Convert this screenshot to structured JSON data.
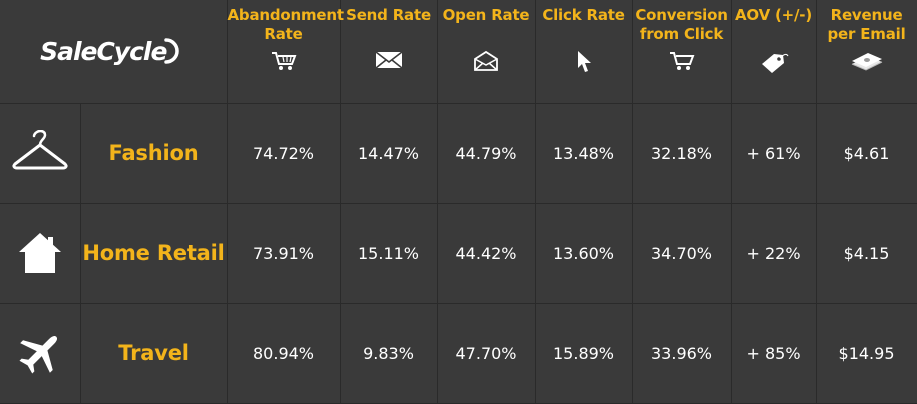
{
  "brand": {
    "name": "SaleCycle"
  },
  "chart_data": {
    "type": "table",
    "columns": [
      {
        "label": "Abandonment Rate",
        "icon": "shopping-cart-icon"
      },
      {
        "label": "Send Rate",
        "icon": "envelope-icon"
      },
      {
        "label": "Open Rate",
        "icon": "open-envelope-icon"
      },
      {
        "label": "Click Rate",
        "icon": "cursor-arrow-icon"
      },
      {
        "label": "Conversion from Click",
        "icon": "cart-icon"
      },
      {
        "label": "AOV (+/-)",
        "icon": "price-tag-icon"
      },
      {
        "label": "Revenue per Email",
        "icon": "money-stack-icon"
      }
    ],
    "rows": [
      {
        "category": "Fashion",
        "icon": "hanger-icon",
        "values": [
          "74.72%",
          "14.47%",
          "44.79%",
          "13.48%",
          "32.18%",
          "+ 61%",
          "$4.61"
        ]
      },
      {
        "category": "Home Retail",
        "icon": "house-icon",
        "values": [
          "73.91%",
          "15.11%",
          "44.42%",
          "13.60%",
          "34.70%",
          "+ 22%",
          "$4.15"
        ]
      },
      {
        "category": "Travel",
        "icon": "airplane-icon",
        "values": [
          "80.94%",
          "9.83%",
          "47.70%",
          "15.89%",
          "33.96%",
          "+ 85%",
          "$14.95"
        ]
      }
    ]
  },
  "colors": {
    "background": "#3a3a3a",
    "accent": "#f3b41b",
    "text": "#ffffff",
    "grid": "#2a2a2a"
  }
}
